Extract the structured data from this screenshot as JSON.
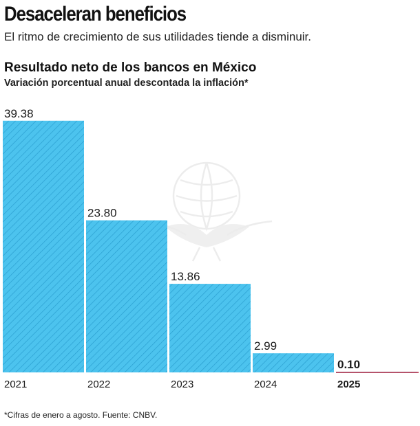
{
  "header": {
    "headline": "Desaceleran beneficios",
    "subheadline": "El ritmo de crecimiento de sus utilidades tiende a disminuir."
  },
  "chart_data": {
    "type": "bar",
    "title": "Resultado neto de los bancos en México",
    "subtitle": "Variación porcentual anual descontada la inflación*",
    "categories": [
      "2021",
      "2022",
      "2023",
      "2024",
      "2025"
    ],
    "value_labels": [
      "39.38",
      "23.80",
      "13.86",
      "2.99",
      "0.10"
    ],
    "values": [
      39.38,
      23.8,
      13.86,
      2.99,
      0.1
    ],
    "xlabel": "",
    "ylabel": "",
    "ylim": [
      0,
      40
    ],
    "grid": false,
    "highlight_category": "2025",
    "colors": {
      "bar_fill": "#4cc3ee",
      "bar_stripe": "#2a9fd0",
      "baseline": "#b0213c",
      "text": "#1a1a1a"
    }
  },
  "footnote": "*Cifras de enero a agosto. Fuente: CNBV.",
  "watermark_icon": "eagle-seal-icon"
}
